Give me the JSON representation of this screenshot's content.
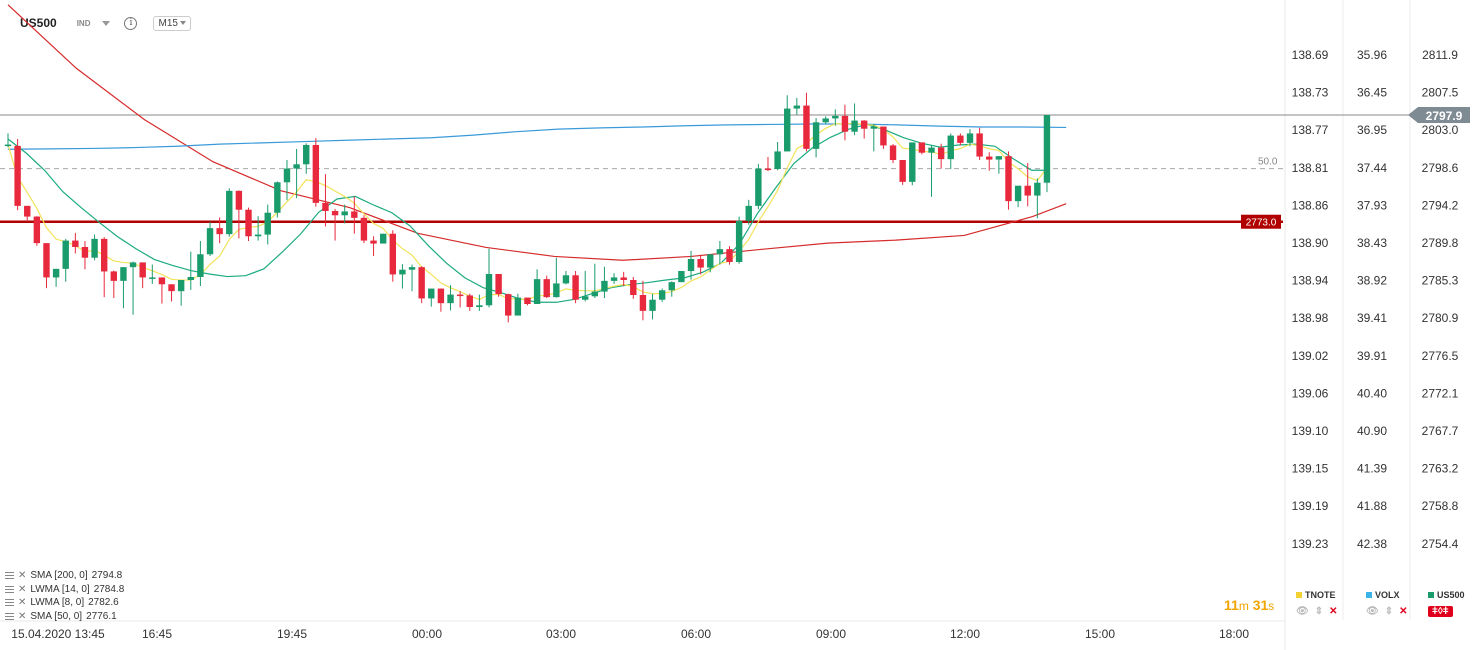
{
  "header": {
    "symbol": "US500",
    "badge": "IND",
    "timeframe": "M15",
    "info_icon": "info-icon"
  },
  "colors": {
    "up": "#1a9b6c",
    "down": "#e8283c",
    "sma200": "#3a9ad9",
    "lwma14": "#1bab80",
    "lwma8": "#f2e35a",
    "sma50": "#d62b2b",
    "hline": "#b00000",
    "price_tag": "#7f8b93"
  },
  "level_line": {
    "value": 2773.0,
    "label": "2773.0"
  },
  "last_price": {
    "value": 2797.9,
    "label": "2797.9"
  },
  "reference_line": {
    "label": "50.0"
  },
  "indicators": [
    {
      "label": "SMA [200,  0]",
      "value": "2794.8"
    },
    {
      "label": "LWMA [14,  0]",
      "value": "2784.8"
    },
    {
      "label": "LWMA [8,  0]",
      "value": "2782.6"
    },
    {
      "label": "SMA [50,  0]",
      "value": "2776.1"
    }
  ],
  "timer": {
    "minutes": "11",
    "m": "m",
    "seconds": "31",
    "s": "s"
  },
  "side_legends": [
    {
      "name": "TNOTE",
      "color": "#f2d232"
    },
    {
      "name": "VOLX",
      "color": "#3ab4e6"
    },
    {
      "name": "US500",
      "color": "#1a9b6c"
    }
  ],
  "chart_data": {
    "type": "candlestick",
    "axes": {
      "tnote": [
        "138.69",
        "138.73",
        "138.77",
        "138.81",
        "138.86",
        "138.90",
        "138.94",
        "138.98",
        "139.02",
        "139.06",
        "139.10",
        "139.15",
        "139.19",
        "139.23"
      ],
      "volx": [
        "35.96",
        "36.45",
        "36.95",
        "37.44",
        "37.93",
        "38.43",
        "38.92",
        "39.41",
        "39.91",
        "40.40",
        "40.90",
        "41.39",
        "41.88",
        "42.38"
      ],
      "us500": [
        "2811.9",
        "2807.5",
        "2803.0",
        "2798.6",
        "2794.2",
        "2789.8",
        "2785.3",
        "2780.9",
        "2776.5",
        "2772.1",
        "2767.7",
        "2763.2",
        "2758.8",
        "2754.4"
      ]
    },
    "x_labels": [
      "15.04.2020  13:45",
      "16:45",
      "19:45",
      "00:00",
      "03:00",
      "06:00",
      "09:00",
      "12:00",
      "15:00",
      "18:00"
    ],
    "candles": [
      [
        2790.7,
        2791,
        2793.6,
        2790.4
      ],
      [
        2790.7,
        2776.7,
        2792.3,
        2775.7
      ],
      [
        2776.7,
        2774.2,
        2776.7,
        2773
      ],
      [
        2774.2,
        2768,
        2774.3,
        2767.4
      ],
      [
        2768,
        2760,
        2768,
        2757.5
      ],
      [
        2760,
        2762,
        2762,
        2757.8
      ],
      [
        2762,
        2768.6,
        2769,
        2759
      ],
      [
        2768.6,
        2767.1,
        2770.4,
        2765.6
      ],
      [
        2767.1,
        2764.6,
        2768.5,
        2761.9
      ],
      [
        2764.6,
        2769,
        2770,
        2764
      ],
      [
        2769,
        2761.4,
        2769.4,
        2755.4
      ],
      [
        2761.4,
        2759.2,
        2761.6,
        2755.2
      ],
      [
        2759.2,
        2762.4,
        2762.4,
        2752.8
      ],
      [
        2762.4,
        2763.5,
        2763.7,
        2751.3
      ],
      [
        2763.5,
        2760,
        2763.5,
        2757.5
      ],
      [
        2760,
        2760,
        2763,
        2758.5
      ],
      [
        2760,
        2758.4,
        2760,
        2753.9
      ],
      [
        2758.4,
        2756.8,
        2758.4,
        2754.4
      ],
      [
        2756.8,
        2759.4,
        2759.4,
        2753.4
      ],
      [
        2759.4,
        2760.1,
        2766,
        2757.1
      ],
      [
        2760.1,
        2765.4,
        2768.5,
        2758
      ],
      [
        2765.4,
        2771.5,
        2773,
        2765
      ],
      [
        2771.5,
        2770.1,
        2774,
        2768
      ],
      [
        2770.1,
        2780.2,
        2780.8,
        2769.5
      ],
      [
        2780.2,
        2775.8,
        2780.3,
        2769.1
      ],
      [
        2775.8,
        2769.6,
        2776.3,
        2768.5
      ],
      [
        2769.6,
        2770,
        2774.3,
        2768.6
      ],
      [
        2770,
        2775.1,
        2777,
        2767.7
      ],
      [
        2775.1,
        2782.2,
        2782.4,
        2774
      ],
      [
        2782.2,
        2785.4,
        2787.4,
        2778
      ],
      [
        2785.4,
        2786.4,
        2790,
        2778.5
      ],
      [
        2786.4,
        2790.9,
        2791.3,
        2784.2
      ],
      [
        2790.9,
        2777.4,
        2792.5,
        2776.5
      ],
      [
        2777.4,
        2775.5,
        2784.1,
        2771.9
      ],
      [
        2775.5,
        2774.5,
        2776,
        2768.6
      ],
      [
        2774.5,
        2775.4,
        2777,
        2772.6
      ],
      [
        2775.4,
        2773.9,
        2778.9,
        2770.2
      ],
      [
        2773.9,
        2768.6,
        2774.5,
        2768
      ],
      [
        2768.6,
        2767.9,
        2769.6,
        2765
      ],
      [
        2767.9,
        2770.2,
        2770.2,
        2769
      ],
      [
        2770.2,
        2760.7,
        2771,
        2759
      ],
      [
        2760.7,
        2761.8,
        2763.1,
        2757.4
      ],
      [
        2761.8,
        2762.4,
        2763,
        2756.8
      ],
      [
        2762.4,
        2755.1,
        2762.6,
        2754
      ],
      [
        2755.1,
        2757.4,
        2757.4,
        2753.2
      ],
      [
        2757.4,
        2754,
        2757.4,
        2752
      ],
      [
        2754,
        2756,
        2758.2,
        2752.3
      ],
      [
        2756,
        2755.8,
        2756.8,
        2753
      ],
      [
        2755.8,
        2753.1,
        2756.2,
        2752.2
      ],
      [
        2753.1,
        2753.5,
        2756,
        2752.2
      ],
      [
        2753.5,
        2760.8,
        2766.7,
        2753
      ],
      [
        2760.8,
        2756.1,
        2760.8,
        2755.5
      ],
      [
        2756.1,
        2751.1,
        2756.2,
        2749.5
      ],
      [
        2751.1,
        2755.3,
        2756.2,
        2751.1
      ],
      [
        2755.3,
        2753.8,
        2754.9,
        2753.5
      ],
      [
        2753.8,
        2759.6,
        2761.9,
        2754
      ],
      [
        2759.6,
        2755.4,
        2760.4,
        2755.2
      ],
      [
        2755.4,
        2758.6,
        2764.6,
        2755.3
      ],
      [
        2758.6,
        2760.5,
        2761.5,
        2758.4
      ],
      [
        2760.5,
        2754.8,
        2761.5,
        2754
      ],
      [
        2754.8,
        2755.6,
        2761.5,
        2754.4
      ],
      [
        2755.6,
        2756.7,
        2763.2,
        2755.2
      ],
      [
        2756.7,
        2759.2,
        2762.5,
        2755.2
      ],
      [
        2759.2,
        2760,
        2761,
        2758.5
      ],
      [
        2760,
        2759.4,
        2761.3,
        2758
      ],
      [
        2759.4,
        2755.9,
        2760.1,
        2755
      ],
      [
        2755.9,
        2752.2,
        2759.2,
        2750
      ],
      [
        2752.2,
        2754.8,
        2756.2,
        2750.2
      ],
      [
        2754.8,
        2757,
        2757.4,
        2754.3
      ],
      [
        2757,
        2758.9,
        2759.1,
        2755.5
      ],
      [
        2758.9,
        2761.5,
        2761.5,
        2758.9
      ],
      [
        2761.5,
        2764.3,
        2766.2,
        2759.5
      ],
      [
        2764.3,
        2762.3,
        2765.3,
        2760.7
      ],
      [
        2762.3,
        2765.4,
        2765.4,
        2761.2
      ],
      [
        2765.4,
        2766.6,
        2768.5,
        2763
      ],
      [
        2766.6,
        2763.6,
        2767.3,
        2763
      ],
      [
        2763.6,
        2773.2,
        2774.2,
        2763.2
      ],
      [
        2773.2,
        2776.7,
        2778.1,
        2772.3
      ],
      [
        2776.7,
        2785.4,
        2786.5,
        2775.9
      ],
      [
        2785.4,
        2785.3,
        2788.1,
        2784.8
      ],
      [
        2785.3,
        2789.4,
        2791.6,
        2785
      ],
      [
        2789.4,
        2799.4,
        2802.5,
        2789.4
      ],
      [
        2799.4,
        2800.1,
        2801.9,
        2798
      ],
      [
        2800.1,
        2790,
        2803.1,
        2789.4
      ],
      [
        2790,
        2796.2,
        2797.2,
        2788
      ],
      [
        2796.2,
        2797.1,
        2797.6,
        2795.7
      ],
      [
        2797.1,
        2797.7,
        2799.2,
        2795.4
      ],
      [
        2797.7,
        2794,
        2800.3,
        2792
      ],
      [
        2794,
        2796.6,
        2800.6,
        2793.2
      ],
      [
        2796.6,
        2794.7,
        2796.7,
        2792.4
      ],
      [
        2794.7,
        2795.2,
        2795.8,
        2789.4
      ],
      [
        2795.2,
        2790.8,
        2791.6,
        2790
      ],
      [
        2790.8,
        2787.4,
        2791.1,
        2786.7
      ],
      [
        2787.4,
        2782.3,
        2787.4,
        2781.6
      ],
      [
        2782.3,
        2791.5,
        2791.5,
        2781.5
      ],
      [
        2791.5,
        2789.1,
        2791.5,
        2788.7
      ],
      [
        2789.1,
        2790.3,
        2790.8,
        2778.8
      ],
      [
        2790.3,
        2787.6,
        2791.2,
        2785.4
      ],
      [
        2787.6,
        2793.1,
        2793.6,
        2785.3
      ],
      [
        2793.1,
        2791.4,
        2793.6,
        2790.8
      ],
      [
        2791.4,
        2793.6,
        2794.6,
        2790.6
      ],
      [
        2793.6,
        2788.2,
        2794.9,
        2787.4
      ],
      [
        2788.2,
        2787.5,
        2789.2,
        2784.9
      ],
      [
        2787.5,
        2788.3,
        2788.3,
        2784.2
      ],
      [
        2788.3,
        2777.8,
        2789.4,
        2775.8
      ],
      [
        2777.8,
        2781.4,
        2781.4,
        2776.4
      ],
      [
        2781.4,
        2779.1,
        2786.7,
        2776.6
      ],
      [
        2779.1,
        2782.1,
        2783.1,
        2773.8
      ],
      [
        2782.1,
        2797.9,
        2797.9,
        2779.9
      ]
    ],
    "lines": {
      "sma200": [
        2789.9,
        2790,
        2790.1,
        2790.3,
        2790.6,
        2791.1,
        2791.4,
        2791.7,
        2792,
        2792.3,
        2792.6,
        2793.2,
        2794,
        2794.6,
        2794.9,
        2795.1,
        2795.4,
        2795.6,
        2795.7,
        2795.8,
        2795.8,
        2795.6,
        2795.3,
        2795.1,
        2795.1,
        2795
      ],
      "lwma14": [
        2792.3,
        2789,
        2785,
        2780,
        2776.3,
        2772.8,
        2769.5,
        2766.7,
        2764.2,
        2762.8,
        2761.6,
        2760.8,
        2760.2,
        2760.4,
        2762,
        2765.9,
        2770.1,
        2775.2,
        2778.3,
        2778.9,
        2776.9,
        2775.1,
        2772,
        2767.4,
        2763.3,
        2759.9,
        2757.6,
        2756.4,
        2755,
        2754.2,
        2754.2,
        2754.9,
        2756.3,
        2757.6,
        2758.3,
        2758.8,
        2759.4,
        2759.9,
        2761.2,
        2763.3,
        2767.7,
        2774.9,
        2780.9,
        2786.6,
        2790.2,
        2792.7,
        2794.6,
        2795.7,
        2794.4,
        2792.6,
        2791.3,
        2790.4,
        2790.9,
        2791.1,
        2790.6,
        2787.7,
        2785,
        2785
      ]
    },
    "sma50_points": [
      2823.6,
      2808.8,
      2796.8,
      2787,
      2780.2,
      2776.3,
      2770.3,
      2767,
      2764.9,
      2764,
      2764.9,
      2766.5,
      2768,
      2768.7,
      2769.8,
      2774.2
    ]
  }
}
